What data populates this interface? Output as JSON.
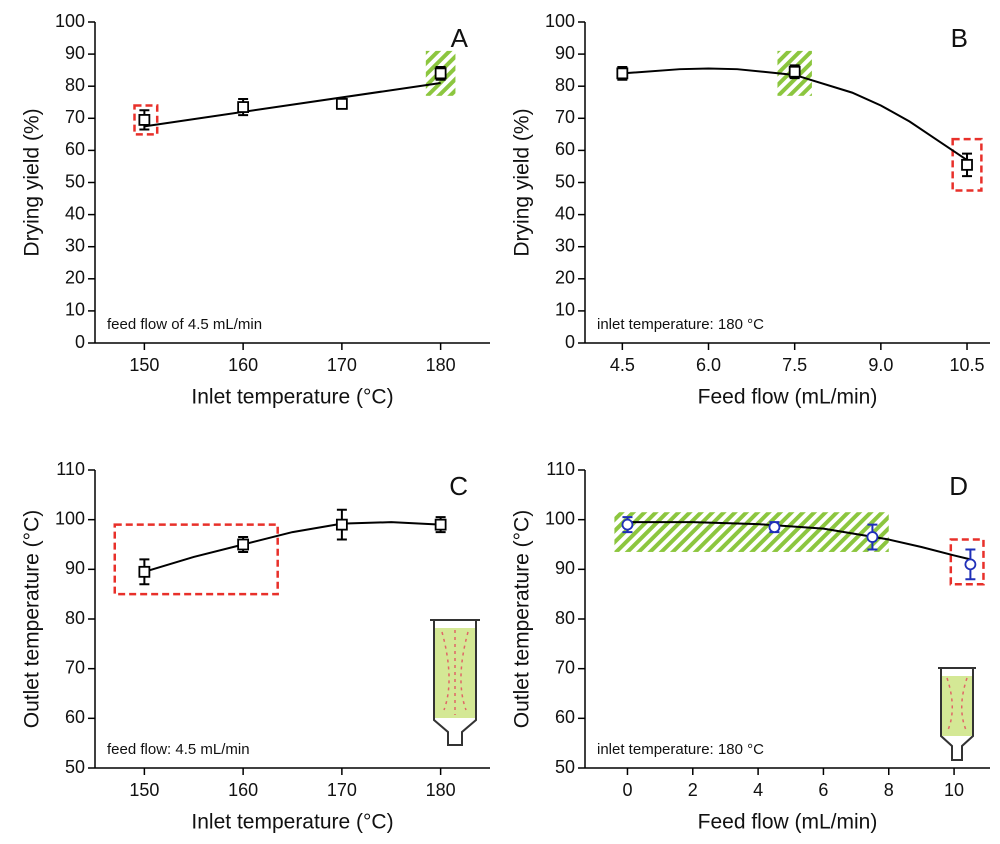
{
  "chart_data": [
    {
      "type": "scatter",
      "panel_label": "A",
      "annotation": "feed flow of 4.5 mL/min",
      "xlabel": "Inlet temperature (°C)",
      "ylabel": "Drying yield (%)",
      "x": [
        150,
        160,
        170,
        180
      ],
      "series": [
        {
          "color": "#000000",
          "marker": "square",
          "values": [
            69.5,
            73.5,
            74.5,
            84
          ],
          "errors": [
            3,
            2.5,
            1.5,
            2
          ]
        }
      ],
      "fit": {
        "x": [
          150,
          180
        ],
        "y": [
          67.5,
          81
        ]
      },
      "highlights": [
        {
          "style": "red",
          "x": [
            149,
            151.3
          ],
          "y": [
            65,
            74
          ]
        },
        {
          "style": "green",
          "x": [
            178.5,
            181.5
          ],
          "y": [
            77,
            91
          ]
        }
      ],
      "xlim": [
        145,
        185
      ],
      "xticks": [
        150,
        160,
        170,
        180
      ],
      "ylim": [
        0,
        100
      ],
      "yticks": [
        0,
        10,
        20,
        30,
        40,
        50,
        60,
        70,
        80,
        90,
        100
      ]
    },
    {
      "type": "scatter",
      "panel_label": "B",
      "annotation": "inlet temperature: 180 °C",
      "xlabel": "Feed flow (mL/min)",
      "ylabel": "Drying yield (%)",
      "x": [
        4.5,
        7.5,
        10.5
      ],
      "series": [
        {
          "color": "#000000",
          "marker": "square",
          "values": [
            84,
            84.5,
            55.5
          ],
          "errors": [
            2,
            2,
            3.5
          ]
        }
      ],
      "fit": {
        "x": [
          4.5,
          5.5,
          6,
          6.5,
          7.5,
          8.5,
          9,
          9.5,
          10,
          10.5
        ],
        "y": [
          84,
          85.3,
          85.5,
          85.3,
          83.5,
          78,
          74,
          69,
          63,
          57
        ]
      },
      "highlights": [
        {
          "style": "green",
          "x": [
            7.2,
            7.8
          ],
          "y": [
            77,
            91
          ]
        },
        {
          "style": "red",
          "x": [
            10.25,
            10.75
          ],
          "y": [
            47.5,
            63.5
          ]
        }
      ],
      "xlim": [
        3.85,
        10.9
      ],
      "xticks": [
        4.5,
        {
          "value": 6,
          "label": "6.0"
        },
        7.5,
        {
          "value": 9,
          "label": "9.0"
        },
        10.5
      ],
      "ylim": [
        0,
        100
      ],
      "yticks": [
        0,
        10,
        20,
        30,
        40,
        50,
        60,
        70,
        80,
        90,
        100
      ]
    },
    {
      "type": "scatter",
      "panel_label": "C",
      "annotation": "feed flow: 4.5 mL/min",
      "xlabel": "Inlet temperature (°C)",
      "ylabel": "Outlet temperature (°C)",
      "x": [
        150,
        160,
        170,
        180
      ],
      "series": [
        {
          "color": "#000000",
          "marker": "square",
          "values": [
            89.5,
            95,
            99,
            99
          ],
          "errors": [
            2.5,
            1.5,
            3,
            1.5
          ]
        }
      ],
      "fit": {
        "x": [
          150,
          155,
          160,
          165,
          170,
          175,
          180
        ],
        "y": [
          89.5,
          92.5,
          95,
          97.5,
          99.2,
          99.5,
          99
        ]
      },
      "highlights": [
        {
          "style": "red",
          "x": [
            147,
            163.5
          ],
          "y": [
            85,
            99
          ]
        }
      ],
      "xlim": [
        145,
        185
      ],
      "xticks": [
        150,
        160,
        170,
        180
      ],
      "ylim": [
        50,
        110
      ],
      "yticks": [
        50,
        60,
        70,
        80,
        90,
        100,
        110
      ]
    },
    {
      "type": "scatter",
      "panel_label": "D",
      "annotation": "inlet temperature: 180 °C",
      "xlabel": "Feed flow (mL/min)",
      "ylabel": "Outlet temperature (°C)",
      "x": [
        0,
        4.5,
        7.5,
        10.5
      ],
      "series": [
        {
          "color": "#1f2fb8",
          "marker": "circle",
          "values": [
            99,
            98.5,
            96.5,
            91
          ],
          "errors": [
            1.5,
            1,
            2.5,
            3
          ]
        }
      ],
      "fit": {
        "x": [
          0,
          2,
          4,
          6,
          8,
          9,
          10,
          10.5
        ],
        "y": [
          99.5,
          99.5,
          99.1,
          98.2,
          96,
          94.5,
          92.8,
          92
        ]
      },
      "highlights": [
        {
          "style": "green",
          "x": [
            -0.4,
            8
          ],
          "y": [
            93.5,
            101.5
          ]
        },
        {
          "style": "red",
          "x": [
            9.9,
            10.9
          ],
          "y": [
            87,
            96
          ]
        }
      ],
      "xlim": [
        -1.3,
        11.1
      ],
      "xticks": [
        0,
        2,
        4,
        6,
        8,
        10
      ],
      "ylim": [
        50,
        110
      ],
      "yticks": [
        50,
        60,
        70,
        80,
        90,
        100,
        110
      ]
    }
  ]
}
